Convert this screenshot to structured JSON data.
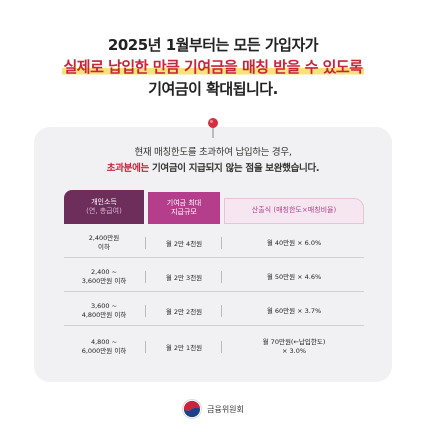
{
  "headline": {
    "line1": "2025년 1월부터는 모든 가입자가",
    "line2": "실제로 납입한 만큼 기여금을 매칭 받을 수 있도록",
    "line3": "기여금이 확대됩니다."
  },
  "notice": {
    "line1": "현재 매칭한도를 초과하여 납입하는 경우,",
    "line2_highlight": "초과분에는",
    "line2_rest": " 기여금이 지급되지 않는 점을 보완했습니다."
  },
  "table": {
    "headers": {
      "col1_line1": "개인소득",
      "col1_line2": "(연, 총급여)",
      "col2_line1": "기여금 최대",
      "col2_line2": "지급규모",
      "col3": "산출식 (매칭한도×매칭비율)"
    },
    "rows": [
      {
        "income_line1": "2,400만원",
        "income_line2": "이하",
        "max": "월 2만 4천원",
        "formula_line1": "월 40만원 × 6.0%",
        "formula_line2": ""
      },
      {
        "income_line1": "2,400 ~",
        "income_line2": "3,600만원 이하",
        "max": "월 2만 3천원",
        "formula_line1": "월 50만원 × 4.6%",
        "formula_line2": ""
      },
      {
        "income_line1": "3,600 ~",
        "income_line2": "4,800만원 이하",
        "max": "월 2만 2천원",
        "formula_line1": "월 60만원 × 3.7%",
        "formula_line2": ""
      },
      {
        "income_line1": "4,800 ~",
        "income_line2": "6,000만원 이하",
        "max": "월 2만 1천원",
        "formula_line1": "월 70만원(←납입한도)",
        "formula_line2": "× 3.0%"
      }
    ]
  },
  "footer": {
    "org": "금융위원회"
  },
  "colors": {
    "accent_red": "#c8243a",
    "header_dark": "#6e2e5c",
    "header_mid": "#b53e8c",
    "highlight_yellow": "#f9e27a"
  }
}
